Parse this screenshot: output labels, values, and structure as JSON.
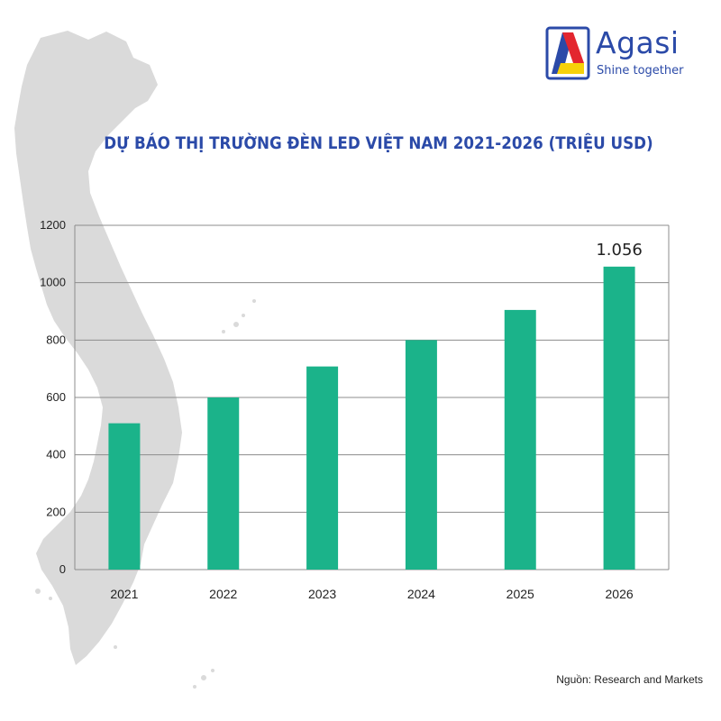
{
  "brand": {
    "name": "Agasi",
    "tagline": "Shine together",
    "colors": {
      "blue": "#2b4aa8",
      "red": "#e3262f",
      "yellow": "#f6d10a"
    }
  },
  "source_note": "Nguồn: Research and Markets",
  "colors": {
    "bar": "#1bb38a",
    "grid": "#8c8c8c",
    "map": "#dadada"
  },
  "chart_data": {
    "type": "bar",
    "title": "DỰ BÁO THỊ TRƯỜNG ĐÈN LED VIỆT NAM 2021-2026 (TRIỆU USD)",
    "xlabel": "",
    "ylabel": "",
    "categories": [
      "2021",
      "2022",
      "2023",
      "2024",
      "2025",
      "2026"
    ],
    "values": [
      510,
      600,
      708,
      800,
      905,
      1056
    ],
    "data_labels": [
      "",
      "",
      "",
      "",
      "",
      "1.056"
    ],
    "ylim": [
      0,
      1200
    ],
    "yticks": [
      0,
      200,
      400,
      600,
      800,
      1000,
      1200
    ],
    "grid": true,
    "legend": "none"
  }
}
